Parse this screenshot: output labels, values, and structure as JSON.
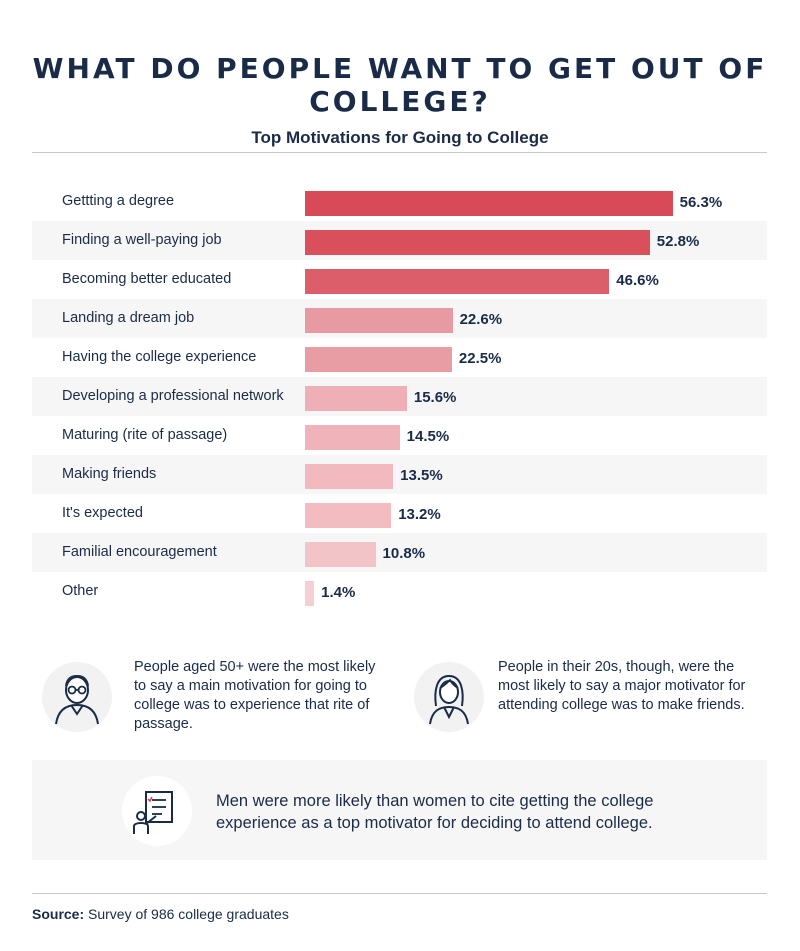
{
  "title": "WHAT DO PEOPLE WANT TO GET OUT OF COLLEGE?",
  "chart_data": {
    "type": "bar",
    "orientation": "horizontal",
    "title": "Top Motivations for Going to College",
    "categories": [
      "Gettting a degree",
      "Finding a well-paying job",
      "Becoming better educated",
      "Landing a dream job",
      "Having the college experience",
      "Developing a professional network",
      "Maturing (rite of passage)",
      "Making friends",
      "It's expected",
      "Familial encouragement",
      "Other"
    ],
    "values": [
      56.3,
      52.8,
      46.6,
      22.6,
      22.5,
      15.6,
      14.5,
      13.5,
      13.2,
      10.8,
      1.4
    ],
    "value_labels": [
      "56.3%",
      "52.8%",
      "46.6%",
      "22.6%",
      "22.5%",
      "15.6%",
      "14.5%",
      "13.5%",
      "13.2%",
      "10.8%",
      "1.4%"
    ],
    "xlim": [
      0,
      100
    ],
    "grid": false,
    "colors": [
      "#d84a58",
      "#d94f5c",
      "#dc5e6a",
      "#e89aa3",
      "#e89da5",
      "#eeb0b6",
      "#f0b3b9",
      "#f2babf",
      "#f2bcc1",
      "#f2c4c8",
      "#f5cfd3"
    ]
  },
  "callouts": {
    "older": "People aged 50+ were the most likely to say a main motivation for going to college was to experience that rite of passage.",
    "younger": "People in their 20s, though, were the most likely to say a major motivator for attending college was to make friends.",
    "gender": "Men were more likely than women to cite getting the college experience as a top motivator for deciding to attend college."
  },
  "icons": {
    "older": "older-man-icon",
    "younger": "young-woman-icon",
    "gender": "presenter-checklist-icon"
  },
  "source": {
    "label": "Source:",
    "text": " Survey of 986 college graduates"
  }
}
